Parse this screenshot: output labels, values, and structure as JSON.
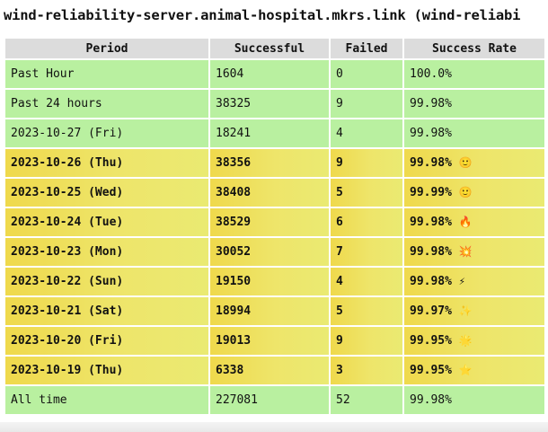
{
  "title": "wind-reliability-server.animal-hospital.mkrs.link (wind-reliabi",
  "table": {
    "headers": [
      "Period",
      "Successful",
      "Failed",
      "Success Rate"
    ],
    "rows": [
      {
        "period": "Past Hour",
        "successful": "1604",
        "failed": "0",
        "rate": "100.0%",
        "emoji": "",
        "highlight": "green"
      },
      {
        "period": "Past 24 hours",
        "successful": "38325",
        "failed": "9",
        "rate": "99.98%",
        "emoji": "",
        "highlight": "green"
      },
      {
        "period": "2023-10-27 (Fri)",
        "successful": "18241",
        "failed": "4",
        "rate": "99.98%",
        "emoji": "",
        "highlight": "green"
      },
      {
        "period": "2023-10-26 (Thu)",
        "successful": "38356",
        "failed": "9",
        "rate": "99.98%",
        "emoji": "🙂",
        "highlight": "yellow"
      },
      {
        "period": "2023-10-25 (Wed)",
        "successful": "38408",
        "failed": "5",
        "rate": "99.99%",
        "emoji": "🙂",
        "highlight": "yellow"
      },
      {
        "period": "2023-10-24 (Tue)",
        "successful": "38529",
        "failed": "6",
        "rate": "99.98%",
        "emoji": "🔥",
        "highlight": "yellow"
      },
      {
        "period": "2023-10-23 (Mon)",
        "successful": "30052",
        "failed": "7",
        "rate": "99.98%",
        "emoji": "💥",
        "highlight": "yellow"
      },
      {
        "period": "2023-10-22 (Sun)",
        "successful": "19150",
        "failed": "4",
        "rate": "99.98%",
        "emoji": "⚡",
        "highlight": "yellow"
      },
      {
        "period": "2023-10-21 (Sat)",
        "successful": "18994",
        "failed": "5",
        "rate": "99.97%",
        "emoji": "✨",
        "highlight": "yellow"
      },
      {
        "period": "2023-10-20 (Fri)",
        "successful": "19013",
        "failed": "9",
        "rate": "99.95%",
        "emoji": "🌟",
        "highlight": "yellow"
      },
      {
        "period": "2023-10-19 (Thu)",
        "successful": "6338",
        "failed": "3",
        "rate": "99.95%",
        "emoji": "⭐",
        "highlight": "yellow"
      },
      {
        "period": "All time",
        "successful": "227081",
        "failed": "52",
        "rate": "99.98%",
        "emoji": "",
        "highlight": "green"
      }
    ]
  },
  "colors": {
    "header_bg": "#dcdcdc",
    "green_row": "#b9f0a0",
    "yellow_row": "#eee56a"
  }
}
